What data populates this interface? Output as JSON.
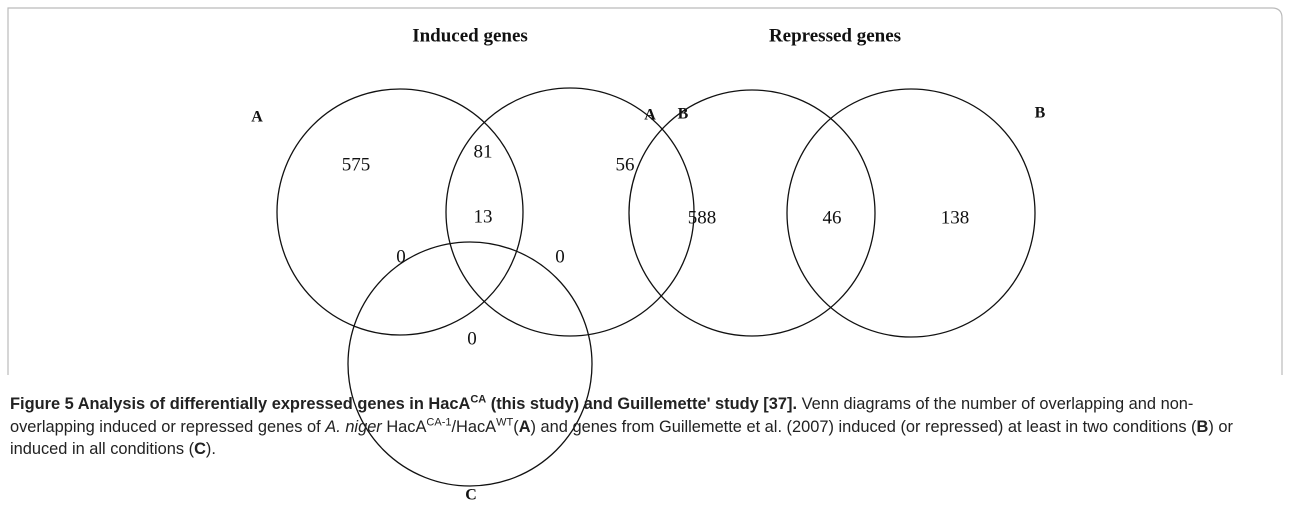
{
  "figure": {
    "induced": {
      "title": "Induced genes",
      "sets": [
        "A",
        "B",
        "C"
      ],
      "regions": {
        "a_only": "575",
        "ab": "81",
        "b_only": "56",
        "abc": "13",
        "ac": "0",
        "bc": "0",
        "c_only": "0"
      }
    },
    "repressed": {
      "title": "Repressed genes",
      "sets": [
        "A",
        "B"
      ],
      "regions": {
        "a_only": "588",
        "ab": "46",
        "b_only": "138"
      }
    },
    "caption": [
      {
        "text": "Figure 5 Analysis of differentially expressed genes in HacA",
        "style": "bold"
      },
      {
        "text": "CA",
        "style": "bold-sup"
      },
      {
        "text": " (this study) and Guillemette' study [37].",
        "style": "bold"
      },
      {
        "text": " Venn diagrams of the number of overlapping and non-overlapping induced or repressed genes of ",
        "style": "normal"
      },
      {
        "text": "A. niger",
        "style": "italic"
      },
      {
        "text": " HacA",
        "style": "normal"
      },
      {
        "text": "CA-1",
        "style": "sup"
      },
      {
        "text": "/HacA",
        "style": "normal"
      },
      {
        "text": "WT",
        "style": "sup"
      },
      {
        "text": "(",
        "style": "normal"
      },
      {
        "text": "A",
        "style": "bold"
      },
      {
        "text": ") and genes from Guillemette et al. (2007) induced (or repressed) at least in two conditions (",
        "style": "normal"
      },
      {
        "text": "B",
        "style": "bold"
      },
      {
        "text": ") or induced in all conditions (",
        "style": "normal"
      },
      {
        "text": "C",
        "style": "bold"
      },
      {
        "text": ").",
        "style": "normal"
      }
    ]
  }
}
